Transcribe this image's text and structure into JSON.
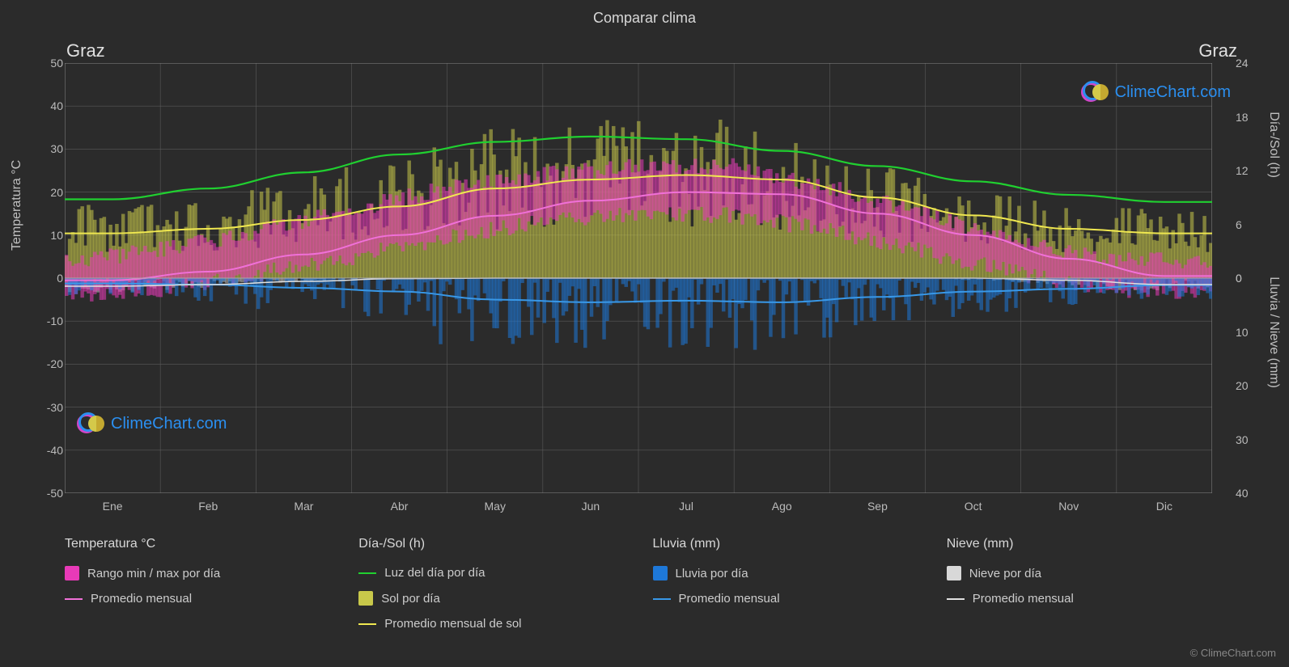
{
  "title": "Comparar clima",
  "city": "Graz",
  "brand": "ClimeChart.com",
  "brand_color": "#2b8ff0",
  "logo_ring_colors": [
    "#2b8ff0",
    "#d146c8"
  ],
  "credit": "© ClimeChart.com",
  "chart": {
    "background": "#2b2b2b",
    "plot_bg": "#2b2b2b",
    "grid_color": "#5a5a5a",
    "grid_width": 0.6,
    "border_color": "#888",
    "left_axis": {
      "label": "Temperatura °C",
      "min": -50,
      "max": 50,
      "step": 10
    },
    "right_axis_top": {
      "label": "Día-/Sol (h)",
      "min": 0,
      "max": 24,
      "step": 6
    },
    "right_axis_bot": {
      "label": "Lluvia / Nieve (mm)",
      "min": 0,
      "max": 40,
      "step": 10
    },
    "months": [
      "Ene",
      "Feb",
      "Mar",
      "Abr",
      "May",
      "Jun",
      "Jul",
      "Ago",
      "Sep",
      "Oct",
      "Nov",
      "Dic"
    ],
    "colors": {
      "temp_range": "#e83ab8",
      "temp_range_alpha": 0.55,
      "temp_mean_line": "#f070d8",
      "sun_bar": "#c8c84a",
      "sun_bar_alpha": 0.55,
      "sun_mean_line": "#f0e850",
      "daylight_line": "#20d030",
      "rain_bar": "#1e78d8",
      "rain_bar_alpha": 0.55,
      "rain_mean_line": "#3898e8",
      "snow_bar": "#d8d8d8",
      "snow_bar_alpha": 0.45,
      "snow_mean_line": "#e0e0e0"
    },
    "monthly": {
      "temp_mean": [
        -0.5,
        1.5,
        5.5,
        10.0,
        14.5,
        18.0,
        20.0,
        19.5,
        15.0,
        10.0,
        4.5,
        0.5
      ],
      "temp_min": [
        -4.0,
        -2.5,
        1.0,
        5.0,
        9.5,
        13.0,
        15.0,
        14.5,
        11.0,
        6.0,
        1.0,
        -3.0
      ],
      "temp_max": [
        4.0,
        6.5,
        11.0,
        16.0,
        21.0,
        24.0,
        26.0,
        26.0,
        21.0,
        15.0,
        8.0,
        4.0
      ],
      "sun_mean_h": [
        5.0,
        5.5,
        6.5,
        8.0,
        10.0,
        11.0,
        11.5,
        11.0,
        9.0,
        7.0,
        5.5,
        5.0
      ],
      "daylight_h": [
        8.8,
        10.0,
        11.8,
        13.8,
        15.2,
        15.8,
        15.5,
        14.2,
        12.5,
        10.8,
        9.3,
        8.5
      ],
      "rain_mm": [
        1.0,
        1.2,
        1.8,
        2.5,
        4.0,
        4.5,
        4.2,
        4.5,
        3.5,
        2.5,
        2.0,
        1.3
      ],
      "snow_mm": [
        1.5,
        1.2,
        0.6,
        0.1,
        0.0,
        0.0,
        0.0,
        0.0,
        0.0,
        0.0,
        0.4,
        1.2
      ]
    }
  },
  "legend": {
    "groups": [
      {
        "title": "Temperatura °C",
        "items": [
          {
            "kind": "sw",
            "color": "#e83ab8",
            "label": "Rango min / max por día"
          },
          {
            "kind": "ln",
            "color": "#f070d8",
            "label": "Promedio mensual"
          }
        ]
      },
      {
        "title": "Día-/Sol (h)",
        "items": [
          {
            "kind": "ln",
            "color": "#20d030",
            "label": "Luz del día por día"
          },
          {
            "kind": "sw",
            "color": "#c8c84a",
            "label": "Sol por día"
          },
          {
            "kind": "ln",
            "color": "#f0e850",
            "label": "Promedio mensual de sol"
          }
        ]
      },
      {
        "title": "Lluvia (mm)",
        "items": [
          {
            "kind": "sw",
            "color": "#1e78d8",
            "label": "Lluvia por día"
          },
          {
            "kind": "ln",
            "color": "#3898e8",
            "label": "Promedio mensual"
          }
        ]
      },
      {
        "title": "Nieve (mm)",
        "items": [
          {
            "kind": "sw",
            "color": "#d8d8d8",
            "label": "Nieve por día"
          },
          {
            "kind": "ln",
            "color": "#e0e0e0",
            "label": "Promedio mensual"
          }
        ]
      }
    ]
  }
}
